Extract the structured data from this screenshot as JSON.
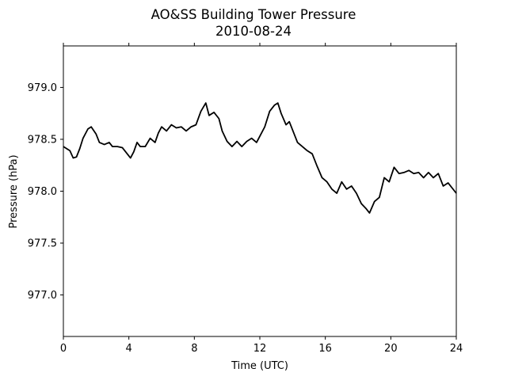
{
  "chart_data": {
    "type": "line",
    "title": "AO&SS Building Tower Pressure",
    "subtitle": "2010-08-24",
    "x_label": "Time (UTC)",
    "y_label": "Pressure (hPa)",
    "xlim": [
      0,
      24
    ],
    "xticks": [
      0,
      4,
      8,
      12,
      16,
      20,
      24
    ],
    "ylim": [
      976.6,
      979.4
    ],
    "yticks": [
      {
        "value": 977,
        "label": "977.0"
      },
      {
        "value": 977.5,
        "label": "977.5"
      },
      {
        "value": 978,
        "label": "978.0"
      },
      {
        "value": 978.5,
        "label": "978.5"
      },
      {
        "value": 979,
        "label": "979.0"
      }
    ],
    "grid": false,
    "series": [
      {
        "name": "Pressure",
        "color": "#000000",
        "x": [
          0,
          0.4,
          0.6,
          0.8,
          1.0,
          1.2,
          1.5,
          1.7,
          2.0,
          2.2,
          2.5,
          2.8,
          3.0,
          3.3,
          3.6,
          3.9,
          4.1,
          4.3,
          4.5,
          4.7,
          5.0,
          5.3,
          5.6,
          5.8,
          6.0,
          6.3,
          6.6,
          6.9,
          7.2,
          7.5,
          7.8,
          8.1,
          8.4,
          8.7,
          8.9,
          9.2,
          9.5,
          9.7,
          10.0,
          10.3,
          10.6,
          10.9,
          11.2,
          11.5,
          11.8,
          12.0,
          12.3,
          12.6,
          12.9,
          13.1,
          13.3,
          13.6,
          13.8,
          14.1,
          14.3,
          14.6,
          14.9,
          15.2,
          15.5,
          15.8,
          16.1,
          16.4,
          16.7,
          17.0,
          17.3,
          17.6,
          17.9,
          18.2,
          18.5,
          18.7,
          19.0,
          19.3,
          19.6,
          19.9,
          20.2,
          20.5,
          20.8,
          21.1,
          21.4,
          21.7,
          22.0,
          22.3,
          22.6,
          22.9,
          23.2,
          23.5,
          23.8,
          24.0
        ],
        "values": [
          978.43,
          978.39,
          978.32,
          978.33,
          978.41,
          978.51,
          978.6,
          978.62,
          978.55,
          978.47,
          978.45,
          978.47,
          978.43,
          978.43,
          978.42,
          978.36,
          978.32,
          978.38,
          978.47,
          978.43,
          978.43,
          978.51,
          978.47,
          978.56,
          978.62,
          978.58,
          978.64,
          978.61,
          978.62,
          978.58,
          978.62,
          978.64,
          978.77,
          978.85,
          978.73,
          978.76,
          978.7,
          978.58,
          978.48,
          978.43,
          978.48,
          978.43,
          978.48,
          978.51,
          978.47,
          978.53,
          978.62,
          978.77,
          978.83,
          978.85,
          978.75,
          978.64,
          978.67,
          978.55,
          978.47,
          978.43,
          978.39,
          978.36,
          978.24,
          978.13,
          978.09,
          978.02,
          977.98,
          978.09,
          978.02,
          978.05,
          977.98,
          977.88,
          977.83,
          977.79,
          977.9,
          977.94,
          978.13,
          978.09,
          978.23,
          978.17,
          978.18,
          978.2,
          978.17,
          978.18,
          978.13,
          978.18,
          978.13,
          978.17,
          978.05,
          978.08,
          978.02,
          977.98
        ]
      }
    ]
  }
}
